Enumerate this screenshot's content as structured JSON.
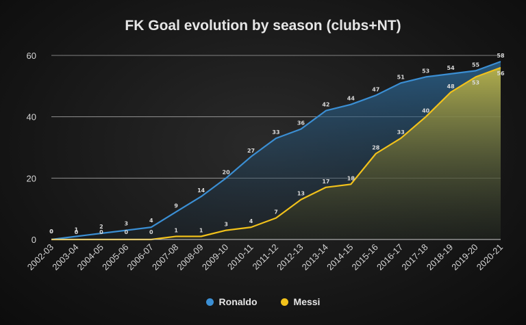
{
  "chart_data": {
    "type": "area",
    "title": "FK Goal evolution by season (clubs+NT)",
    "categories": [
      "2002-03",
      "2003-04",
      "2004-05",
      "2005-06",
      "2006-07",
      "2007-08",
      "2008-09",
      "2009-10",
      "2010-11",
      "2011-12",
      "2012-13",
      "2013-14",
      "2014-15",
      "2015-16",
      "2016-17",
      "2017-18",
      "2018-19",
      "2019-20",
      "2020-21"
    ],
    "series": [
      {
        "name": "Ronaldo",
        "color": "#3b8fd4",
        "values": [
          0,
          1,
          2,
          3,
          4,
          9,
          14,
          20,
          27,
          33,
          36,
          42,
          44,
          47,
          51,
          53,
          54,
          55,
          58
        ]
      },
      {
        "name": "Messi",
        "color": "#f2c21b",
        "values": [
          0,
          0,
          0,
          0,
          0,
          1,
          1,
          3,
          4,
          7,
          13,
          17,
          18,
          28,
          33,
          40,
          48,
          53,
          56
        ]
      }
    ],
    "ylim": [
      0,
      60
    ],
    "yticks": [
      0,
      20,
      40,
      60
    ],
    "grid": true,
    "legend_position": "bottom"
  }
}
